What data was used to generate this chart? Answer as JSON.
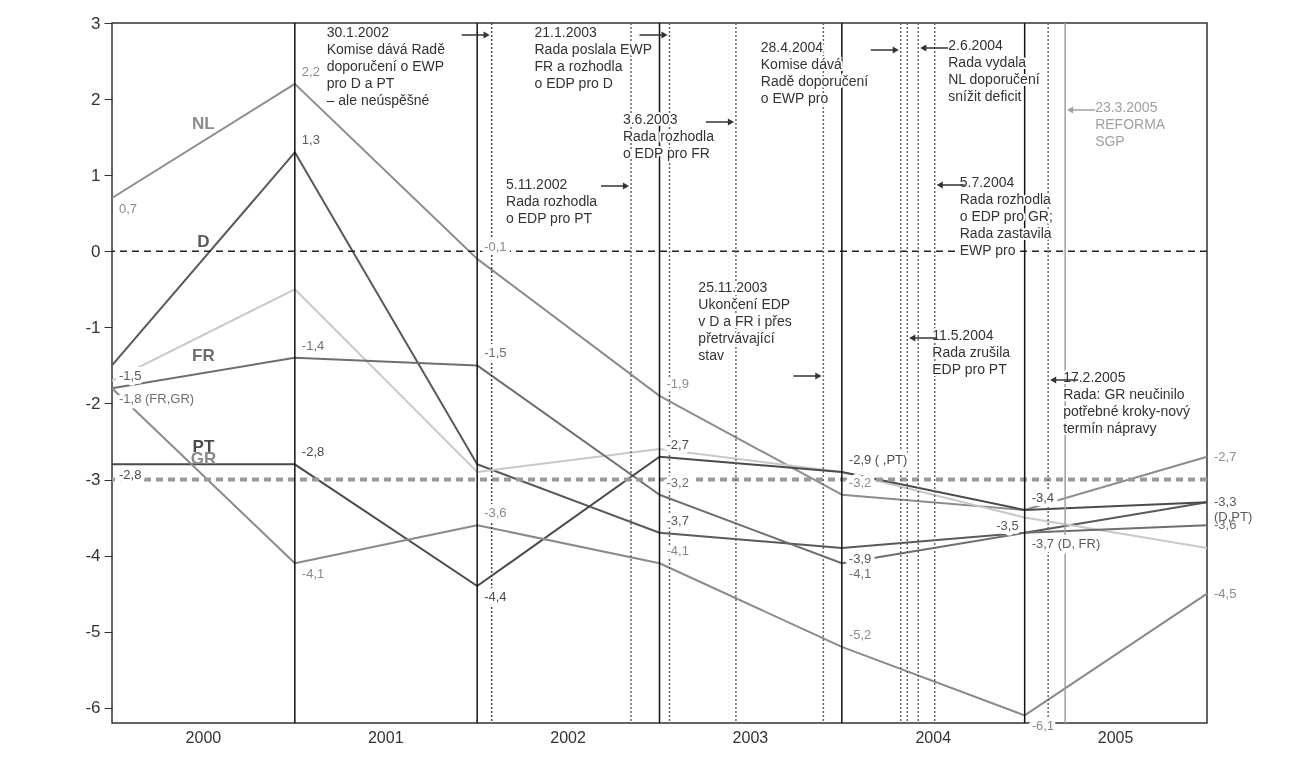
{
  "chart_data": {
    "type": "line",
    "x": [
      "2000",
      "2001",
      "2002",
      "2003",
      "2004",
      "2005",
      "2006"
    ],
    "xlim": [
      "2000",
      "2006"
    ],
    "xticks": [
      {
        "value": "2000-07-01",
        "label": "2000"
      },
      {
        "value": "2001-07-01",
        "label": "2001"
      },
      {
        "value": "2002-07-01",
        "label": "2002"
      },
      {
        "value": "2003-07-01",
        "label": "2003"
      },
      {
        "value": "2004-07-01",
        "label": "2004"
      },
      {
        "value": "2005-07-01",
        "label": "2005"
      }
    ],
    "ylim": [
      -6.2,
      3
    ],
    "yticks": [
      -6,
      -5,
      -4,
      -3,
      -2,
      -1,
      0,
      1,
      2,
      3
    ],
    "marker": "none",
    "line_style": "solid",
    "legend": false,
    "series": [
      {
        "name": "NL",
        "color": "#8c8c8c",
        "values": [
          0.7,
          2.2,
          -0.1,
          -1.9,
          -3.2,
          -3.4,
          -2.7
        ],
        "value_labels": [
          "0,7",
          "2,2",
          "-0,1",
          "-1,9",
          "-3,2",
          null,
          "-2,7"
        ]
      },
      {
        "name": "D",
        "color": "#595959",
        "values": [
          -1.5,
          1.3,
          -2.8,
          -3.7,
          -3.9,
          -3.7,
          -3.3
        ],
        "value_labels": [
          "-1,5",
          "1,3",
          null,
          "-3,7",
          "-3,9",
          "-3,7 (D, FR)",
          "-3,3\n(D,PT)"
        ]
      },
      {
        "color": "#c8c8c8",
        "values": [
          -1.7,
          -0.5,
          -2.9,
          -2.6,
          -2.9,
          -3.5,
          -3.9
        ],
        "value_labels": [
          null,
          null,
          null,
          null,
          null,
          "-3,5",
          null
        ]
      },
      {
        "name": "FR",
        "color": "#6e6e6e",
        "values": [
          -1.8,
          -1.4,
          -1.5,
          -3.2,
          -4.1,
          -3.7,
          -3.6
        ],
        "value_labels": [
          "-1,8 (FR,GR)",
          "-1,4",
          "-1,5",
          "-3,2",
          "-4,1",
          null,
          "-3,6"
        ]
      },
      {
        "name": "PT",
        "color": "#4a4a4a",
        "values": [
          -2.8,
          -2.8,
          -4.4,
          -2.7,
          -2.9,
          -3.4,
          -3.3
        ],
        "value_labels": [
          "-2,8",
          "-2,8",
          "-4,4",
          "-2,7",
          "-2,9 ( ,PT)",
          "-3,4",
          null
        ]
      },
      {
        "name": "GR",
        "color": "#8a8a8a",
        "values": [
          -1.8,
          -4.1,
          -3.6,
          -4.1,
          -5.2,
          -6.1,
          -4.5
        ],
        "value_labels": [
          null,
          "-4,1",
          "-3,6",
          "-4,1",
          "-5,2",
          "-6,1",
          "-4,5"
        ]
      }
    ],
    "ref_lines": [
      {
        "axis": "y",
        "value": 0,
        "color": "#222222",
        "line_style": "dashed"
      },
      {
        "axis": "y",
        "value": -3,
        "color": "#9a9a9a",
        "line_style": "dashed"
      },
      {
        "axis": "x",
        "value": "2001",
        "color": "#111111",
        "line_style": "solid"
      },
      {
        "axis": "x",
        "value": "2002",
        "color": "#111111",
        "line_style": "solid"
      },
      {
        "axis": "x",
        "value": "2003",
        "color": "#111111",
        "line_style": "solid"
      },
      {
        "axis": "x",
        "value": "2004",
        "color": "#111111",
        "line_style": "solid"
      },
      {
        "axis": "x",
        "value": "2005",
        "color": "#111111",
        "line_style": "solid"
      },
      {
        "axis": "x",
        "value": "2002-01-30",
        "color": "#444444",
        "line_style": "dotted",
        "label": "30.1.2002\nKomise dává Radě\ndoporučení o EWP\npro D a PT\n– ale neúspěšné"
      },
      {
        "axis": "x",
        "value": "2002-11-05",
        "color": "#666666",
        "line_style": "dotted",
        "label": "5.11.2002\nRada rozhodla\no EDP pro PT"
      },
      {
        "axis": "x",
        "value": "2003-01-21",
        "color": "#666666",
        "line_style": "dotted",
        "label": "21.1.2003\nRada poslala EWP\nFR a rozhodla\no EDP pro D"
      },
      {
        "axis": "x",
        "value": "2003-06-03",
        "color": "#666666",
        "line_style": "dotted",
        "label": "3.6.2003\nRada rozhodla\no EDP pro FR"
      },
      {
        "axis": "x",
        "value": "2003-11-25",
        "color": "#666666",
        "line_style": "dotted",
        "label": "25.11.2003\nUkončení EDP\nv D a FR i přes\npřetrvávající\nstav"
      },
      {
        "axis": "x",
        "value": "2004-04-28",
        "color": "#666666",
        "line_style": "dotted",
        "label": "28.4.2004\nKomise dává\nRadě doporučení\no EWP pro"
      },
      {
        "axis": "x",
        "value": "2004-05-11",
        "color": "#666666",
        "line_style": "dotted",
        "label": "11.5.2004\nRada zrušila\nEDP pro PT"
      },
      {
        "axis": "x",
        "value": "2004-06-02",
        "color": "#666666",
        "line_style": "dotted",
        "label": "2.6.2004\nRada vydala\nNL doporučení\nsnížit deficit"
      },
      {
        "axis": "x",
        "value": "2004-07-05",
        "color": "#666666",
        "line_style": "dotted",
        "label": "5.7.2004\nRada rozhodla\no EDP pro GR;\nRada zastavila\nEWP pro"
      },
      {
        "axis": "x",
        "value": "2005-02-17",
        "color": "#666666",
        "line_style": "dotted",
        "label": "17.2.2005\nRada: GR neučinilo\npotřebné kroky-nový\ntermín nápravy"
      },
      {
        "axis": "x",
        "value": "2005-03-23",
        "color": "#a0a0a0",
        "line_style": "solid",
        "label": "23.3.2005\nREFORMA\nSGP"
      }
    ]
  }
}
